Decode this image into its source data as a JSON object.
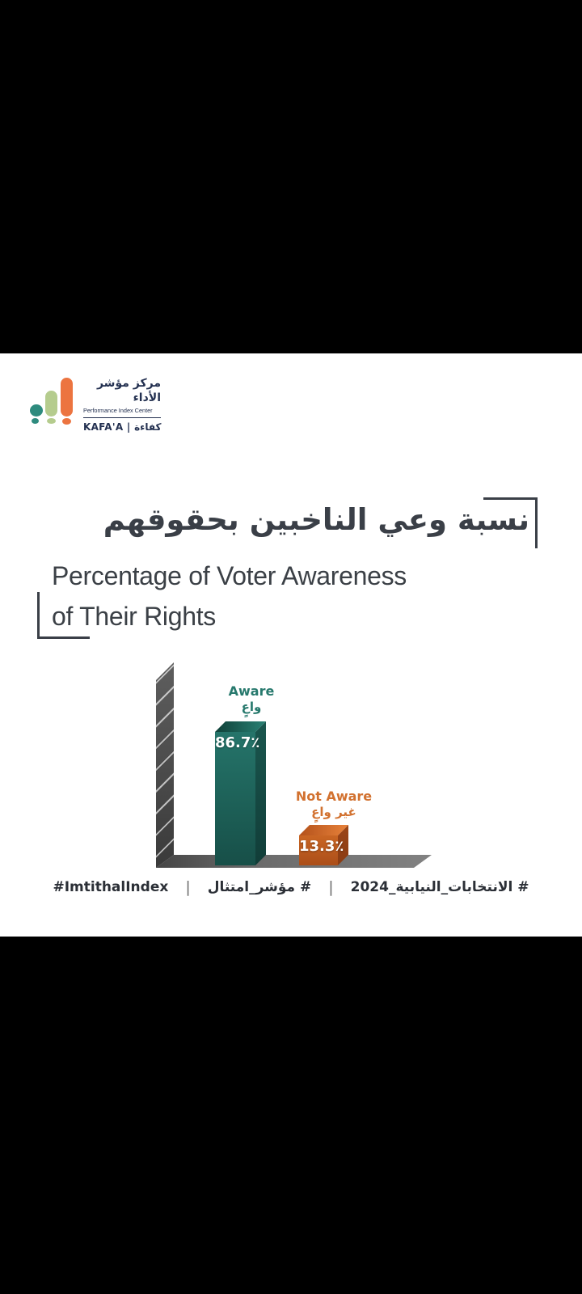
{
  "brand": {
    "name_ar": "مركز مؤشر الأداء",
    "name_en": "Performance Index Center",
    "tagline": "KAFA'A | كفاءة"
  },
  "title": {
    "ar": "نسبة وعي الناخبين بحقوقهم",
    "en_line1": "Percentage of Voter Awareness",
    "en_line2": "of Their Rights"
  },
  "chart_data": {
    "type": "bar",
    "title": "Percentage of Voter Awareness of Their Rights",
    "title_ar": "نسبة وعي الناخبين بحقوقهم",
    "categories": [
      "Aware",
      "Not Aware"
    ],
    "categories_ar": [
      "واعٍ",
      "غير واعٍ"
    ],
    "values": [
      86.7,
      13.3
    ],
    "value_labels": [
      "86.7٪",
      "13.3٪"
    ],
    "value_range": [
      0,
      100
    ],
    "orientation": "vertical-3d",
    "bar_colors": [
      "#1d6057",
      "#c05e20"
    ],
    "label_colors": [
      "#27796d",
      "#d2712f"
    ],
    "axis_color": "#4a4a4a",
    "floor_color": "#6a6a6a",
    "grid": false,
    "legend": false
  },
  "hashtags": {
    "en": "#ImtithalIndex",
    "separator": "|",
    "ar_index": "# مؤشر_امتثال",
    "ar_elections": "# الانتخابات_النيابية_2024"
  },
  "colors": {
    "background_letterbox": "#000000",
    "canvas": "#ffffff",
    "brand_teal": "#2e8b7e",
    "brand_green": "#b5cc8e",
    "brand_orange": "#ec7440",
    "brand_navy": "#233050",
    "title_gray": "#3a3f47",
    "bar_teal": "#1d6057",
    "bar_orange": "#c05e20"
  }
}
